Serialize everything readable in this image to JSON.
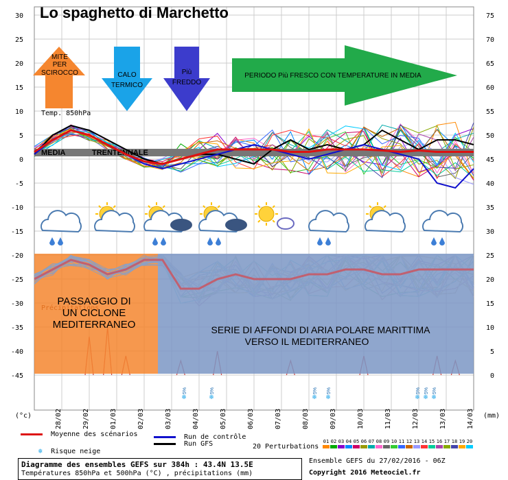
{
  "title": "Lo spaghetto di Marchetto",
  "chart_data": {
    "type": "line",
    "x_labels": [
      "28/02",
      "29/02",
      "01/03",
      "02/03",
      "03/03",
      "04/03",
      "05/03",
      "06/03",
      "07/03",
      "08/03",
      "09/03",
      "10/03",
      "11/03",
      "12/03",
      "13/03",
      "14/03"
    ],
    "y_left_ticks": [
      30,
      25,
      20,
      15,
      10,
      5,
      0,
      -5,
      -10,
      -15,
      -20,
      -25,
      -30,
      -35,
      -40,
      -45
    ],
    "y_right_ticks": [
      75,
      70,
      65,
      60,
      55,
      50,
      45,
      40,
      35,
      30,
      25,
      20,
      15,
      10,
      5,
      0
    ],
    "ylabel_left": "(°c)",
    "ylabel_right": "(mm)",
    "temp850_label": "Temp. 850hPa",
    "precip_label": "Précipitations",
    "media_label_1": "MEDIA",
    "media_label_2": "TRENTENNALE",
    "mean_850": [
      1.5,
      4,
      6,
      5,
      3,
      1,
      -0.5,
      -1,
      0,
      1,
      2,
      2,
      2,
      2,
      1.5,
      1.5,
      2,
      2,
      2,
      1.8,
      1.5,
      1.8,
      1.5,
      1.5,
      1.5
    ],
    "gfs_850": [
      1,
      5,
      7,
      6,
      4,
      2,
      0,
      -1,
      0,
      1,
      1,
      0,
      -1,
      2,
      4,
      2,
      3,
      2,
      3,
      6,
      4,
      2,
      4,
      4,
      3
    ],
    "control_850": [
      1,
      4,
      6,
      5,
      3,
      1,
      -1,
      -2,
      -1,
      0,
      1,
      2,
      3,
      2,
      1,
      0,
      1,
      2,
      3,
      2,
      1,
      0,
      -5,
      -6,
      -2
    ],
    "mean_500": [
      -25,
      -23,
      -21,
      -22,
      -24,
      -23,
      -21,
      -21,
      -27,
      -27,
      -25,
      -24,
      -25,
      -25,
      -25,
      -24,
      -24,
      -23,
      -23,
      -24,
      -24,
      -23,
      -23,
      -23,
      -23
    ],
    "snow_risk_days": [
      "03/03",
      "05/03",
      "08/03",
      "09/03",
      "12/03",
      "13/03",
      "13/03"
    ],
    "snow_pct": "5%"
  },
  "annotations": {
    "mite": [
      "MITE",
      "PER",
      "SCIROCCO"
    ],
    "calo": [
      "CALO",
      "TERMICO"
    ],
    "piu_freddo": [
      "Più",
      "FREDDO"
    ],
    "periodo": "PERIODO Più FRESCO CON TEMPERATURE  IN MEDIA",
    "passaggio": [
      "PASSAGGIO DI",
      "UN CICLONE",
      "MEDITERRANEO"
    ],
    "serie": [
      "SERIE DI AFFONDI DI ARIA POLARE MARITTIMA",
      "VERSO IL MEDITERRANEO"
    ]
  },
  "colors": {
    "orange_arrow": "#f5862f",
    "blue_arrow": "#1aa3e8",
    "darkblue_arrow": "#3c3ccc",
    "green_arrow": "#22aa4a",
    "orange_box": "#f5862f",
    "blue_box": "#7b97c4",
    "mean": "#dd1111",
    "control": "#1111cc",
    "gfs": "#000000"
  },
  "legend": {
    "mean": "Moyenne des scénarios",
    "control": "Run de contrôle",
    "gfs": "Run GFS",
    "snow": "Risque neige",
    "perturb": "20 Perturbations",
    "perturb_nums": [
      "01",
      "02",
      "03",
      "04",
      "05",
      "06",
      "07",
      "08",
      "09",
      "10",
      "11",
      "12",
      "13",
      "14",
      "15",
      "16",
      "17",
      "18",
      "19",
      "20"
    ]
  },
  "footer": {
    "line1": "Diagramme des ensembles GEFS sur 384h : 43.4N 13.5E",
    "line2": "Températures 850hPa et 500hPa (°C) , précipitations (mm)",
    "ensemble": "Ensemble GEFS du 27/02/2016 - 06Z",
    "copyright": "Copyright 2016 Meteociel.fr"
  }
}
